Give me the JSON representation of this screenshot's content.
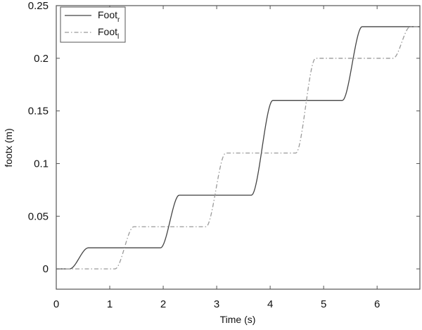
{
  "chart_data": {
    "type": "line",
    "title": "",
    "xlabel": "Time (s)",
    "ylabel": "footx (m)",
    "xlim": [
      0,
      6.8
    ],
    "ylim": [
      -0.0193,
      0.25
    ],
    "xticks": [
      0,
      1,
      2,
      3,
      4,
      5,
      6
    ],
    "xtick_labels": [
      "0",
      "1",
      "2",
      "3",
      "4",
      "5",
      "6"
    ],
    "yticks": [
      0,
      0.05,
      0.1,
      0.15,
      0.2,
      0.25
    ],
    "ytick_labels": [
      "0",
      "0.05",
      "0.1",
      "0.15",
      "0.2",
      "0.25"
    ],
    "grid": false,
    "legend_position": "upper left",
    "series": [
      {
        "name": "Foot_r",
        "legend_main": "Foot",
        "legend_sub": "r",
        "style": "solid",
        "color": "#444444",
        "segments": [
          {
            "t0": 0.0,
            "t1": 0.25,
            "y0": 0.0,
            "y1": 0.0
          },
          {
            "t0": 0.25,
            "t1": 0.6,
            "y0": 0.0,
            "y1": 0.02
          },
          {
            "t0": 0.6,
            "t1": 1.95,
            "y0": 0.02,
            "y1": 0.02
          },
          {
            "t0": 1.95,
            "t1": 2.3,
            "y0": 0.02,
            "y1": 0.07
          },
          {
            "t0": 2.3,
            "t1": 3.65,
            "y0": 0.07,
            "y1": 0.07
          },
          {
            "t0": 3.65,
            "t1": 4.05,
            "y0": 0.07,
            "y1": 0.16
          },
          {
            "t0": 4.05,
            "t1": 5.35,
            "y0": 0.16,
            "y1": 0.16
          },
          {
            "t0": 5.35,
            "t1": 5.72,
            "y0": 0.16,
            "y1": 0.23
          },
          {
            "t0": 5.72,
            "t1": 6.8,
            "y0": 0.23,
            "y1": 0.23
          }
        ]
      },
      {
        "name": "Foot_l",
        "legend_main": "Foot",
        "legend_sub": "l",
        "style": "dashdot",
        "color": "#9a9a9a",
        "segments": [
          {
            "t0": 0.0,
            "t1": 1.1,
            "y0": 0.0,
            "y1": 0.0
          },
          {
            "t0": 1.1,
            "t1": 1.45,
            "y0": 0.0,
            "y1": 0.04
          },
          {
            "t0": 1.45,
            "t1": 2.8,
            "y0": 0.04,
            "y1": 0.04
          },
          {
            "t0": 2.8,
            "t1": 3.17,
            "y0": 0.04,
            "y1": 0.11
          },
          {
            "t0": 3.17,
            "t1": 4.48,
            "y0": 0.11,
            "y1": 0.11
          },
          {
            "t0": 4.48,
            "t1": 4.85,
            "y0": 0.11,
            "y1": 0.2
          },
          {
            "t0": 4.85,
            "t1": 6.3,
            "y0": 0.2,
            "y1": 0.2
          },
          {
            "t0": 6.3,
            "t1": 6.62,
            "y0": 0.2,
            "y1": 0.23
          },
          {
            "t0": 6.62,
            "t1": 6.8,
            "y0": 0.23,
            "y1": 0.23
          }
        ]
      }
    ]
  }
}
